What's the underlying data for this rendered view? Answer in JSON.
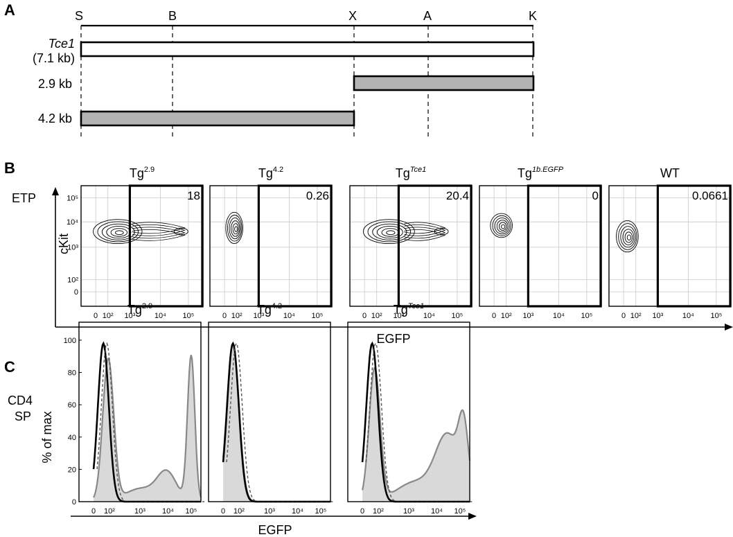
{
  "panel_a": {
    "letter": "A",
    "sites": [
      "S",
      "B",
      "X",
      "A",
      "K"
    ],
    "rows": [
      {
        "name": "Tce1",
        "size": "(7.1 kb)"
      },
      {
        "name": "",
        "size": "2.9 kb"
      },
      {
        "name": "",
        "size": "4.2 kb"
      }
    ]
  },
  "panel_b": {
    "letter": "B",
    "row_label": "ETP",
    "ylabel": "cKit",
    "xlabel": "EGFP",
    "plots": [
      {
        "base": "Tg",
        "sup": "2.9",
        "sup_italic": false,
        "gate_value": "18"
      },
      {
        "base": "Tg",
        "sup": "4.2",
        "sup_italic": false,
        "gate_value": "0.26"
      },
      {
        "base": "Tg",
        "sup": "Tce1",
        "sup_italic": true,
        "gate_value": "20.4"
      },
      {
        "base": "Tg",
        "sup": "1b.EGFP",
        "sup_italic": true,
        "gate_value": "0"
      },
      {
        "base": "WT",
        "sup": "",
        "sup_italic": false,
        "gate_value": "0.0661"
      }
    ],
    "y_ticks": [
      "10⁵",
      "10⁴",
      "10³",
      "10²",
      "0"
    ],
    "x_ticks": [
      "0",
      "10²",
      "10³",
      "10⁴",
      "10⁵"
    ]
  },
  "panel_c": {
    "letter": "C",
    "row_label_1": "CD4",
    "row_label_2": "SP",
    "ylabel": "% of max",
    "xlabel": "EGFP",
    "y_ticks": [
      "100",
      "80",
      "60",
      "40",
      "20",
      "0"
    ],
    "x_ticks": [
      "0",
      "10²",
      "10³",
      "10⁴",
      "10⁵"
    ],
    "plots": [
      {
        "base": "Tg",
        "sup": "2.9",
        "sup_italic": false
      },
      {
        "base": "Tg",
        "sup": "4.2",
        "sup_italic": false
      },
      {
        "base": "Tg",
        "sup": "Tce1",
        "sup_italic": true
      }
    ]
  }
}
